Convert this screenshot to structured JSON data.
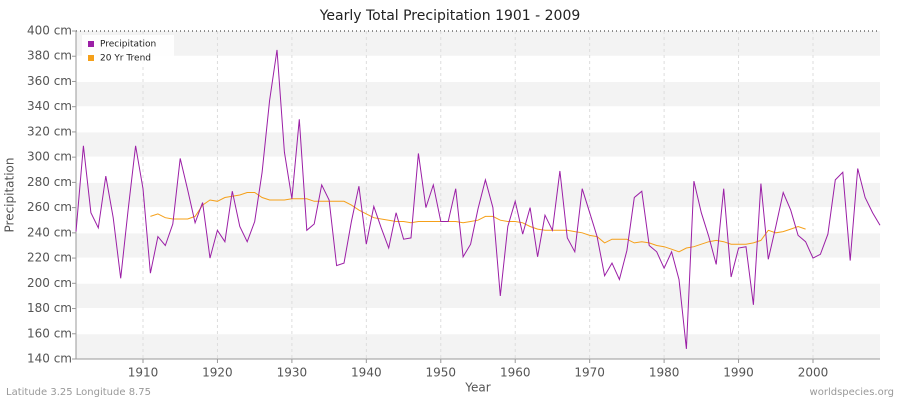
{
  "chart_data": {
    "type": "line",
    "title": "Yearly Total Precipitation 1901 - 2009",
    "x_label": "Year",
    "y_label": "Precipitation",
    "footer_left": "Latitude 3.25 Longitude 8.75",
    "footer_right": "worldspecies.org",
    "x": [
      1901,
      1902,
      1903,
      1904,
      1905,
      1906,
      1907,
      1908,
      1909,
      1910,
      1911,
      1912,
      1913,
      1914,
      1915,
      1916,
      1917,
      1918,
      1919,
      1920,
      1921,
      1922,
      1923,
      1924,
      1925,
      1926,
      1927,
      1928,
      1929,
      1930,
      1931,
      1932,
      1933,
      1934,
      1935,
      1936,
      1937,
      1938,
      1939,
      1940,
      1941,
      1942,
      1943,
      1944,
      1945,
      1946,
      1947,
      1948,
      1949,
      1950,
      1951,
      1952,
      1953,
      1954,
      1955,
      1956,
      1957,
      1958,
      1959,
      1960,
      1961,
      1962,
      1963,
      1964,
      1965,
      1966,
      1967,
      1968,
      1969,
      1970,
      1971,
      1972,
      1973,
      1974,
      1975,
      1976,
      1977,
      1978,
      1979,
      1980,
      1981,
      1982,
      1983,
      1984,
      1985,
      1986,
      1987,
      1988,
      1989,
      1990,
      1991,
      1992,
      1993,
      1994,
      1995,
      1996,
      1997,
      1998,
      1999,
      2000,
      2001,
      2002,
      2003,
      2004,
      2005,
      2006,
      2007,
      2008,
      2009
    ],
    "series": [
      {
        "name": "Precipitation",
        "color": "#9b1fa6",
        "values": [
          241,
          309,
          256,
          244,
          285,
          252,
          204,
          258,
          309,
          275,
          208,
          237,
          230,
          247,
          299,
          274,
          248,
          264,
          220,
          242,
          233,
          273,
          245,
          233,
          249,
          288,
          345,
          385,
          304,
          267,
          330,
          242,
          247,
          278,
          266,
          214,
          216,
          249,
          277,
          231,
          261,
          244,
          228,
          256,
          235,
          236,
          303,
          260,
          278,
          249,
          249,
          275,
          221,
          231,
          259,
          282,
          260,
          190,
          245,
          265,
          239,
          260,
          221,
          254,
          242,
          289,
          236,
          225,
          275,
          256,
          237,
          206,
          216,
          203,
          226,
          268,
          273,
          230,
          225,
          212,
          225,
          203,
          148,
          281,
          256,
          237,
          215,
          275,
          205,
          228,
          229,
          183,
          279,
          219,
          245,
          272,
          258,
          238,
          233,
          220,
          223,
          239,
          282,
          288,
          218,
          291,
          268,
          256,
          246
        ]
      },
      {
        "name": "20 Yr Trend",
        "color": "#f5a01a",
        "values": [
          null,
          null,
          null,
          null,
          null,
          null,
          null,
          null,
          null,
          null,
          253,
          255,
          252,
          251,
          251,
          251,
          253,
          262,
          266,
          265,
          268,
          269,
          270,
          272,
          272,
          268,
          266,
          266,
          266,
          267,
          267,
          267,
          265,
          265,
          265,
          265,
          265,
          262,
          258,
          255,
          252,
          251,
          250,
          249,
          249,
          248,
          249,
          249,
          249,
          249,
          249,
          249,
          248,
          249,
          250,
          253,
          253,
          250,
          249,
          249,
          248,
          245,
          243,
          242,
          242,
          242,
          242,
          241,
          240,
          238,
          237,
          232,
          235,
          235,
          235,
          232,
          233,
          232,
          230,
          229,
          227,
          225,
          228,
          229,
          231,
          233,
          234,
          233,
          231,
          231,
          231,
          232,
          234,
          242,
          240,
          241,
          243,
          245,
          243,
          null,
          null,
          null,
          null,
          null,
          null,
          null,
          null,
          null,
          null
        ]
      }
    ],
    "xlim": [
      1901,
      2009
    ],
    "xticks": [
      1910,
      1920,
      1930,
      1940,
      1950,
      1960,
      1970,
      1980,
      1990,
      2000
    ],
    "ylim": [
      140,
      400
    ],
    "yticks": [
      {
        "value": 140,
        "label": "140 cm"
      },
      {
        "value": 160,
        "label": "160 cm"
      },
      {
        "value": 180,
        "label": "180 cm"
      },
      {
        "value": 200,
        "label": "200 cm"
      },
      {
        "value": 220,
        "label": "220 cm"
      },
      {
        "value": 240,
        "label": "240 cm"
      },
      {
        "value": 260,
        "label": "260 cm"
      },
      {
        "value": 280,
        "label": "280 cm"
      },
      {
        "value": 300,
        "label": "300 cm"
      },
      {
        "value": 320,
        "label": "320 cm"
      },
      {
        "value": 340,
        "label": "340 cm"
      },
      {
        "value": 360,
        "label": "360 cm"
      },
      {
        "value": 380,
        "label": "380 cm"
      },
      {
        "value": 400,
        "label": "400 cm"
      }
    ],
    "grid": true,
    "legend_position": "upper-left"
  }
}
